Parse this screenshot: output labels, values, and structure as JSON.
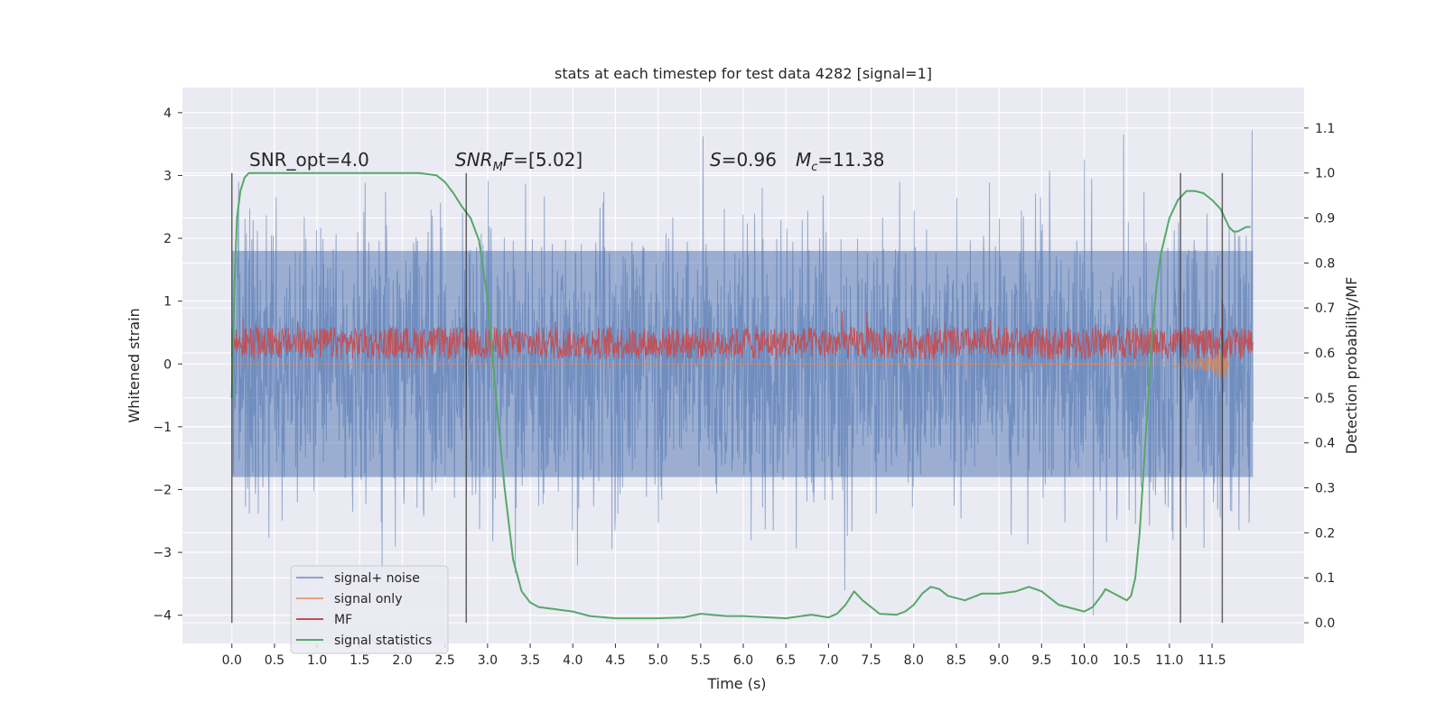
{
  "chart_data": {
    "type": "line",
    "title": "stats at each timestep for test data 4282 [signal=1]",
    "xlabel": "Time (s)",
    "ylabel": "Whitened strain",
    "y2label": "Detection probability/MF",
    "xlim": [
      -0.58,
      12.58
    ],
    "ylim": [
      -4.45,
      4.4
    ],
    "y2lim": [
      -0.046,
      1.19
    ],
    "grid": true,
    "legend_position": "lower-left",
    "x_ticks": [
      "0.0",
      "0.5",
      "1.0",
      "1.5",
      "2.0",
      "2.5",
      "3.0",
      "3.5",
      "4.0",
      "4.5",
      "5.0",
      "5.5",
      "6.0",
      "6.5",
      "7.0",
      "7.5",
      "8.0",
      "8.5",
      "9.0",
      "9.5",
      "10.0",
      "10.5",
      "11.0",
      "11.5"
    ],
    "x_tick_values": [
      0,
      0.5,
      1,
      1.5,
      2,
      2.5,
      3,
      3.5,
      4,
      4.5,
      5,
      5.5,
      6,
      6.5,
      7,
      7.5,
      8,
      8.5,
      9,
      9.5,
      10,
      10.5,
      11,
      11.5
    ],
    "y_ticks": [
      "4",
      "3",
      "2",
      "1",
      "0",
      "−1",
      "−2",
      "−3",
      "−4"
    ],
    "y_tick_values": [
      4,
      3,
      2,
      1,
      0,
      -1,
      -2,
      -3,
      -4
    ],
    "y2_ticks": [
      "1.1",
      "1.0",
      "0.9",
      "0.8",
      "0.7",
      "0.6",
      "0.5",
      "0.4",
      "0.3",
      "0.2",
      "0.1",
      "0.0"
    ],
    "y2_tick_values": [
      1.1,
      1.0,
      0.9,
      0.8,
      0.7,
      0.6,
      0.5,
      0.4,
      0.3,
      0.2,
      0.1,
      0.0
    ],
    "annotations": {
      "snr_opt": "SNR_opt=4.0",
      "snr_mf_sym": "SNR",
      "snr_mf_sub": "M",
      "snr_mf_rest": "F=[5.02]",
      "s_sym": "S",
      "s_val": "=0.96",
      "mc_sym": "M",
      "mc_sub": "c",
      "mc_val": "=11.38"
    },
    "vertical_lines": [
      0.0,
      2.75,
      11.13,
      11.62
    ],
    "series": [
      {
        "name": "signal+ noise",
        "color": "#4c72b0",
        "x_range": [
          0.0,
          11.98
        ],
        "envelope_typical": [
          -1.8,
          1.8
        ],
        "envelope_peaks": [
          -4.1,
          4.0
        ]
      },
      {
        "name": "signal only",
        "color": "#dd8452",
        "x": [
          0.0,
          1.0,
          2.0,
          3.0,
          4.0,
          5.0,
          6.0,
          7.0,
          8.0,
          9.0,
          10.0,
          10.5,
          11.0,
          11.3,
          11.5,
          11.6,
          11.62,
          11.65,
          11.7
        ],
        "amplitude": [
          0.001,
          0.001,
          0.001,
          0.001,
          0.002,
          0.002,
          0.003,
          0.004,
          0.005,
          0.007,
          0.012,
          0.02,
          0.04,
          0.08,
          0.14,
          0.22,
          0.28,
          0.3,
          0.0
        ]
      },
      {
        "name": "MF",
        "color": "#c44e52",
        "x_range": [
          0.0,
          11.98
        ],
        "typical_range": [
          0.06,
          0.6
        ],
        "spike": {
          "x": 11.62,
          "y": 1.02
        }
      },
      {
        "name": "signal statistics",
        "color": "#55a868",
        "axis": "y2",
        "x": [
          0.0,
          0.03,
          0.06,
          0.1,
          0.15,
          0.2,
          0.3,
          0.5,
          1.0,
          1.5,
          2.0,
          2.2,
          2.4,
          2.5,
          2.6,
          2.7,
          2.8,
          2.9,
          3.0,
          3.1,
          3.2,
          3.3,
          3.4,
          3.5,
          3.6,
          3.8,
          4.0,
          4.2,
          4.5,
          5.0,
          5.3,
          5.5,
          5.8,
          6.0,
          6.3,
          6.5,
          6.8,
          7.0,
          7.1,
          7.2,
          7.3,
          7.4,
          7.6,
          7.8,
          7.9,
          8.0,
          8.1,
          8.2,
          8.3,
          8.4,
          8.6,
          8.8,
          9.0,
          9.2,
          9.35,
          9.5,
          9.7,
          9.9,
          10.0,
          10.1,
          10.2,
          10.25,
          10.3,
          10.4,
          10.5,
          10.55,
          10.6,
          10.65,
          10.7,
          10.75,
          10.8,
          10.85,
          10.9,
          11.0,
          11.1,
          11.2,
          11.3,
          11.4,
          11.5,
          11.6,
          11.7,
          11.75,
          11.8,
          11.9,
          11.95
        ],
        "y": [
          0.5,
          0.75,
          0.9,
          0.96,
          0.99,
          1.0,
          1.0,
          1.0,
          1.0,
          1.0,
          1.0,
          1.0,
          0.995,
          0.98,
          0.955,
          0.925,
          0.9,
          0.85,
          0.72,
          0.5,
          0.3,
          0.14,
          0.07,
          0.045,
          0.035,
          0.03,
          0.025,
          0.015,
          0.01,
          0.01,
          0.012,
          0.02,
          0.015,
          0.015,
          0.012,
          0.01,
          0.018,
          0.012,
          0.02,
          0.04,
          0.07,
          0.05,
          0.02,
          0.018,
          0.025,
          0.04,
          0.065,
          0.08,
          0.075,
          0.06,
          0.05,
          0.065,
          0.065,
          0.07,
          0.08,
          0.07,
          0.04,
          0.03,
          0.025,
          0.035,
          0.06,
          0.075,
          0.07,
          0.06,
          0.05,
          0.06,
          0.1,
          0.2,
          0.35,
          0.5,
          0.65,
          0.75,
          0.82,
          0.9,
          0.94,
          0.96,
          0.96,
          0.955,
          0.94,
          0.92,
          0.88,
          0.87,
          0.87,
          0.88,
          0.88
        ]
      }
    ]
  }
}
